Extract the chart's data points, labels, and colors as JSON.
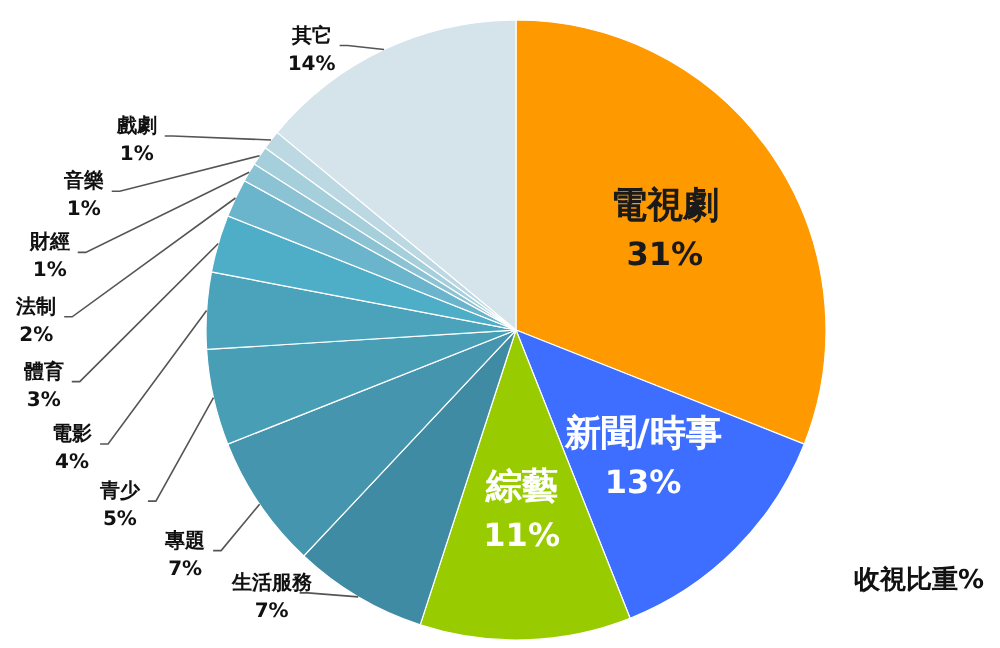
{
  "chart_data": {
    "type": "pie",
    "categories": [
      "電視劇",
      "新聞/時事",
      "綜藝",
      "生活服務",
      "專題",
      "青少",
      "電影",
      "體育",
      "法制",
      "財經",
      "音樂",
      "戲劇",
      "其它"
    ],
    "values": [
      31,
      13,
      11,
      7,
      7,
      5,
      4,
      3,
      2,
      1,
      1,
      1,
      14
    ],
    "value_labels": [
      "31%",
      "13%",
      "11%",
      "7%",
      "7%",
      "5%",
      "4%",
      "3%",
      "2%",
      "1%",
      "1%",
      "1%",
      "14%"
    ],
    "colors": [
      "#ff9900",
      "#3d6eff",
      "#99cc00",
      "#3f8ba3",
      "#4495ad",
      "#489fb5",
      "#4aa3bb",
      "#4eadc7",
      "#6bb5cc",
      "#8cc3d4",
      "#a6cfdc",
      "#bcd9e3",
      "#d5e4ea"
    ],
    "annotations": [
      "收視比重%"
    ]
  }
}
